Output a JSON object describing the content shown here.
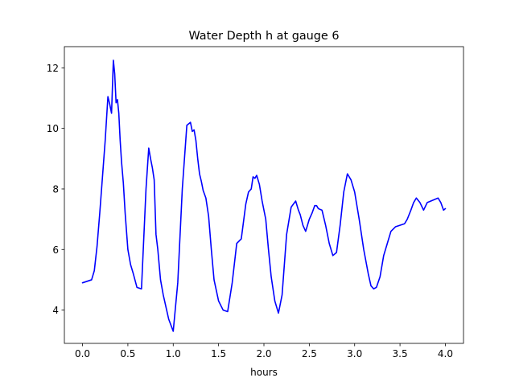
{
  "chart_data": {
    "type": "line",
    "title": "Water Depth h at gauge 6",
    "xlabel": "hours",
    "ylabel": "",
    "xlim": [
      -0.2,
      4.2
    ],
    "ylim": [
      2.9,
      12.7
    ],
    "xticks": [
      0.0,
      0.5,
      1.0,
      1.5,
      2.0,
      2.5,
      3.0,
      3.5,
      4.0
    ],
    "xtick_labels": [
      "0.0",
      "0.5",
      "1.0",
      "1.5",
      "2.0",
      "2.5",
      "3.0",
      "3.5",
      "4.0"
    ],
    "yticks": [
      4,
      6,
      8,
      10,
      12
    ],
    "ytick_labels": [
      "4",
      "6",
      "8",
      "10",
      "12"
    ],
    "grid": false,
    "line_color": "#0000ff",
    "series": [
      {
        "name": "",
        "x": [
          0.0,
          0.05,
          0.1,
          0.13,
          0.16,
          0.19,
          0.22,
          0.25,
          0.28,
          0.3,
          0.32,
          0.34,
          0.355,
          0.37,
          0.385,
          0.4,
          0.415,
          0.43,
          0.45,
          0.47,
          0.5,
          0.53,
          0.56,
          0.6,
          0.65,
          0.7,
          0.73,
          0.75,
          0.77,
          0.79,
          0.81,
          0.83,
          0.86,
          0.89,
          0.92,
          0.95,
          1.0,
          1.05,
          1.1,
          1.15,
          1.19,
          1.21,
          1.23,
          1.25,
          1.27,
          1.29,
          1.31,
          1.33,
          1.36,
          1.39,
          1.42,
          1.45,
          1.5,
          1.55,
          1.6,
          1.65,
          1.7,
          1.75,
          1.8,
          1.83,
          1.86,
          1.88,
          1.9,
          1.92,
          1.95,
          1.98,
          2.02,
          2.05,
          2.08,
          2.12,
          2.16,
          2.2,
          2.25,
          2.3,
          2.35,
          2.38,
          2.4,
          2.43,
          2.46,
          2.5,
          2.53,
          2.56,
          2.58,
          2.6,
          2.64,
          2.68,
          2.72,
          2.76,
          2.8,
          2.84,
          2.88,
          2.92,
          2.96,
          3.0,
          3.05,
          3.1,
          3.15,
          3.18,
          3.21,
          3.24,
          3.28,
          3.32,
          3.36,
          3.4,
          3.45,
          3.5,
          3.55,
          3.58,
          3.62,
          3.65,
          3.68,
          3.72,
          3.76,
          3.8,
          3.84,
          3.88,
          3.92,
          3.95,
          3.98,
          4.0
        ],
        "y": [
          4.9,
          4.95,
          5.0,
          5.3,
          6.1,
          7.2,
          8.4,
          9.6,
          11.05,
          10.8,
          10.5,
          12.25,
          11.8,
          10.85,
          10.95,
          10.5,
          9.6,
          8.9,
          8.2,
          7.2,
          6.0,
          5.5,
          5.2,
          4.75,
          4.7,
          8.0,
          9.35,
          9.0,
          8.7,
          8.3,
          6.5,
          6.0,
          5.0,
          4.5,
          4.1,
          3.7,
          3.3,
          4.9,
          8.0,
          10.1,
          10.2,
          9.9,
          9.95,
          9.6,
          9.0,
          8.5,
          8.25,
          7.95,
          7.7,
          7.1,
          6.0,
          5.0,
          4.3,
          4.0,
          3.95,
          4.9,
          6.2,
          6.35,
          7.5,
          7.9,
          8.0,
          8.4,
          8.35,
          8.45,
          8.15,
          7.6,
          7.0,
          6.0,
          5.1,
          4.3,
          3.9,
          4.5,
          6.5,
          7.4,
          7.6,
          7.3,
          7.15,
          6.8,
          6.6,
          7.0,
          7.2,
          7.45,
          7.45,
          7.35,
          7.3,
          6.8,
          6.2,
          5.8,
          5.9,
          6.8,
          7.9,
          8.5,
          8.3,
          7.9,
          7.0,
          6.0,
          5.2,
          4.8,
          4.7,
          4.75,
          5.1,
          5.8,
          6.2,
          6.6,
          6.75,
          6.8,
          6.85,
          7.0,
          7.3,
          7.55,
          7.7,
          7.55,
          7.3,
          7.55,
          7.6,
          7.65,
          7.7,
          7.55,
          7.3,
          7.35
        ],
        "_note": ""
      }
    ]
  }
}
